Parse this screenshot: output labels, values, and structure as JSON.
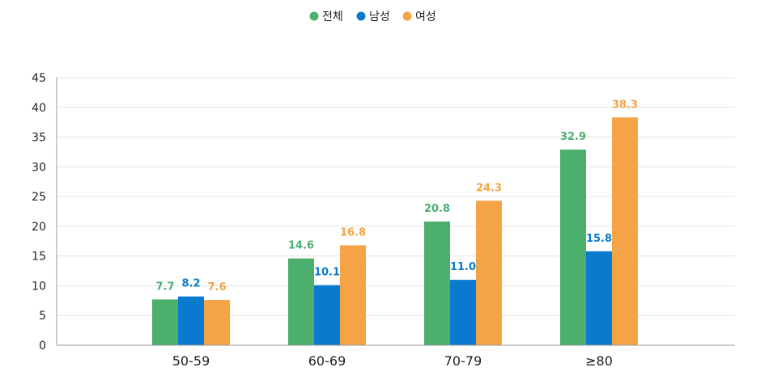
{
  "chart_data": {
    "type": "bar",
    "categories": [
      "50-59",
      "60-69",
      "70-79",
      "≥80"
    ],
    "series": [
      {
        "name": "전체",
        "color": "#4caf6e",
        "values": [
          7.7,
          14.6,
          20.8,
          32.9
        ],
        "labels": [
          "7.7",
          "14.6",
          "20.8",
          "32.9"
        ]
      },
      {
        "name": "남성",
        "color": "#0a7acf",
        "values": [
          8.2,
          10.1,
          11.0,
          15.8
        ],
        "labels": [
          "8.2",
          "10.1",
          "11.0",
          "15.8"
        ]
      },
      {
        "name": "여성",
        "color": "#f4a444",
        "values": [
          7.6,
          16.8,
          24.3,
          38.3
        ],
        "labels": [
          "7.6",
          "16.8",
          "24.3",
          "38.3"
        ]
      }
    ],
    "yticks": [
      "0",
      "5",
      "10",
      "15",
      "20",
      "25",
      "30",
      "35",
      "40",
      "45"
    ],
    "ylim": [
      0,
      45
    ],
    "grid": true,
    "legend": "top-center",
    "title": "",
    "xlabel": "",
    "ylabel": ""
  }
}
